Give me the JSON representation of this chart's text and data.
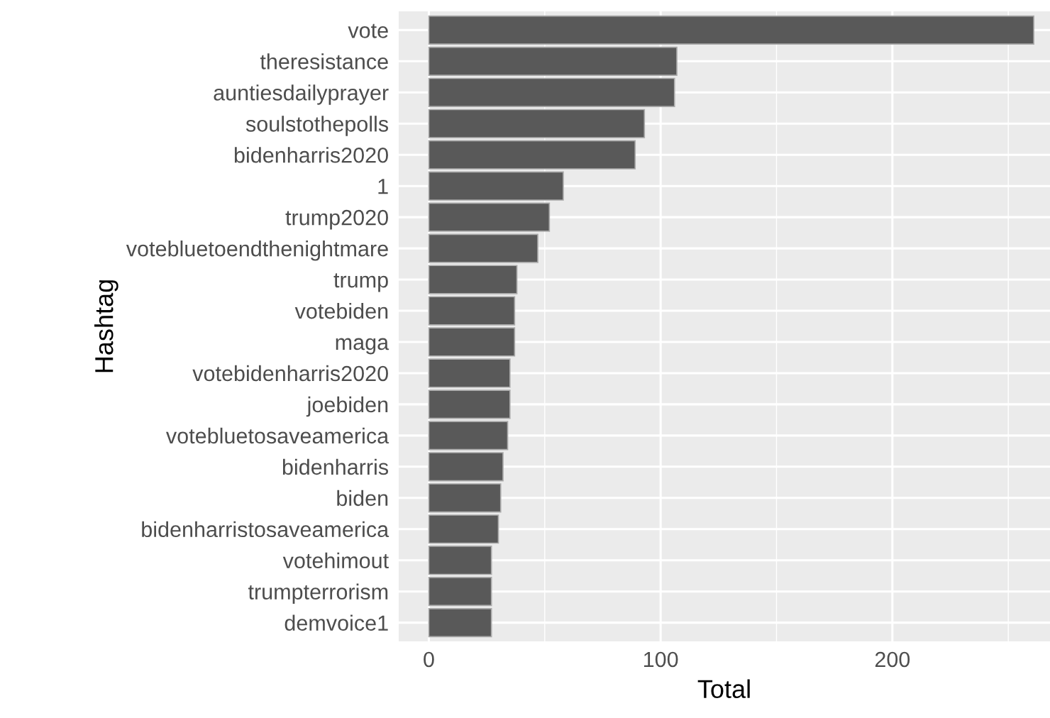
{
  "chart_data": {
    "type": "bar",
    "orientation": "horizontal",
    "xlabel": "Total",
    "ylabel": "Hashtag",
    "categories": [
      "vote",
      "theresistance",
      "auntiesdailyprayer",
      "soulstothepolls",
      "bidenharris2020",
      "1",
      "trump2020",
      "votebluetoendthenightmare",
      "trump",
      "votebiden",
      "maga",
      "votebidenharris2020",
      "joebiden",
      "votebluetosaveamerica",
      "bidenharris",
      "biden",
      "bidenharristosaveamerica",
      "votehimout",
      "trumpterrorism",
      "demvoice1"
    ],
    "values": [
      261,
      107,
      106,
      93,
      89,
      58,
      52,
      47,
      38,
      37,
      37,
      35,
      35,
      34,
      32,
      31,
      30,
      27,
      27,
      27
    ],
    "color": "#595959",
    "xlim": [
      -13,
      268
    ],
    "xticks": [
      0,
      100,
      200
    ],
    "grid": true
  }
}
